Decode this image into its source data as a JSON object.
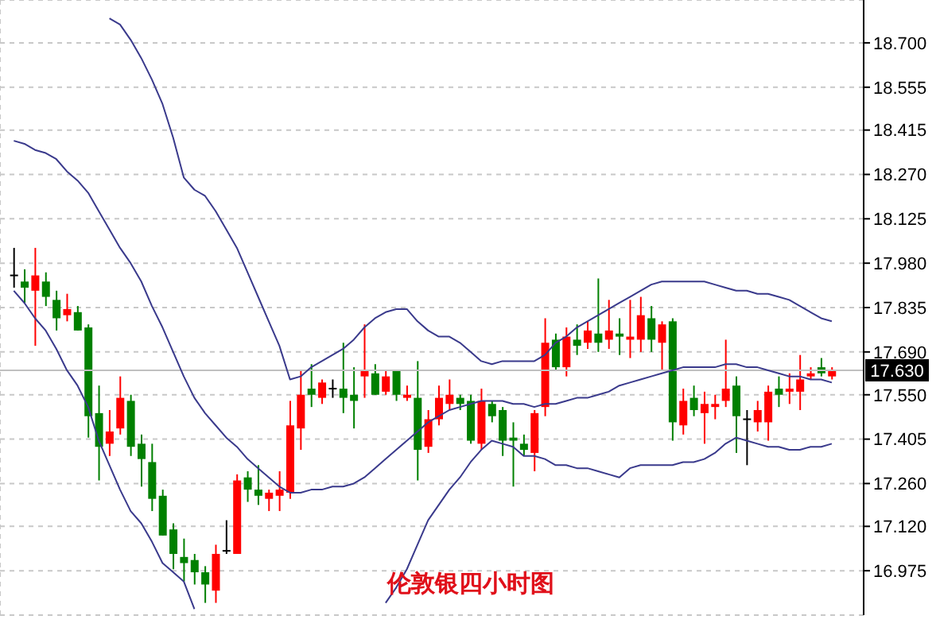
{
  "chart_data": {
    "type": "candlestick",
    "title": "伦敦银四小时图",
    "categories": [
      null,
      null,
      null,
      null,
      null,
      null,
      null,
      null,
      null,
      null,
      null,
      null,
      null,
      null,
      null,
      null,
      null,
      null,
      null,
      null,
      null,
      null,
      null,
      null,
      null,
      null,
      null,
      null,
      null,
      null,
      null,
      null,
      null,
      null,
      null,
      null,
      null,
      null,
      null,
      null,
      null,
      null,
      null,
      null,
      null,
      null,
      null,
      null,
      null,
      null,
      null,
      null,
      null,
      null,
      null,
      null,
      null,
      null,
      null,
      null,
      null,
      null,
      null,
      null,
      null,
      null,
      null,
      null,
      null,
      null,
      null,
      null,
      null,
      null,
      null,
      null,
      null,
      null
    ],
    "ohlc": [
      [
        17.94,
        18.03,
        17.9,
        17.94
      ],
      [
        17.92,
        17.96,
        17.85,
        17.9
      ],
      [
        17.89,
        18.03,
        17.71,
        17.94
      ],
      [
        17.92,
        17.95,
        17.84,
        17.87
      ],
      [
        17.86,
        17.89,
        17.76,
        17.8
      ],
      [
        17.81,
        17.88,
        17.79,
        17.83
      ],
      [
        17.82,
        17.84,
        17.76,
        17.76
      ],
      [
        17.77,
        17.78,
        17.41,
        17.48
      ],
      [
        17.49,
        17.58,
        17.27,
        17.38
      ],
      [
        17.39,
        17.5,
        17.35,
        17.43
      ],
      [
        17.44,
        17.61,
        17.42,
        17.54
      ],
      [
        17.53,
        17.55,
        17.35,
        17.38
      ],
      [
        17.39,
        17.42,
        17.25,
        17.34
      ],
      [
        17.33,
        17.39,
        17.17,
        17.21
      ],
      [
        17.22,
        17.24,
        17.09,
        17.09
      ],
      [
        17.11,
        17.13,
        16.98,
        17.03
      ],
      [
        17.02,
        17.08,
        16.94,
        17.0
      ],
      [
        17.01,
        17.03,
        16.93,
        16.97
      ],
      [
        16.97,
        16.99,
        16.87,
        16.93
      ],
      [
        16.91,
        17.06,
        16.87,
        17.03
      ],
      [
        17.04,
        17.14,
        17.03,
        17.04
      ],
      [
        17.03,
        17.29,
        17.03,
        17.27
      ],
      [
        17.28,
        17.3,
        17.2,
        17.24
      ],
      [
        17.24,
        17.32,
        17.19,
        17.22
      ],
      [
        17.21,
        17.24,
        17.17,
        17.23
      ],
      [
        17.22,
        17.3,
        17.17,
        17.24
      ],
      [
        17.23,
        17.53,
        17.21,
        17.45
      ],
      [
        17.44,
        17.63,
        17.37,
        17.55
      ],
      [
        17.57,
        17.65,
        17.51,
        17.55
      ],
      [
        17.54,
        17.6,
        17.52,
        17.59
      ],
      [
        17.57,
        17.6,
        17.54,
        17.57
      ],
      [
        17.57,
        17.72,
        17.49,
        17.54
      ],
      [
        17.55,
        17.64,
        17.44,
        17.53
      ],
      [
        17.61,
        17.78,
        17.54,
        17.63
      ],
      [
        17.62,
        17.65,
        17.55,
        17.55
      ],
      [
        17.56,
        17.63,
        17.55,
        17.61
      ],
      [
        17.63,
        17.63,
        17.53,
        17.55
      ],
      [
        17.54,
        17.58,
        17.53,
        17.55
      ],
      [
        17.54,
        17.66,
        17.27,
        17.37
      ],
      [
        17.38,
        17.5,
        17.36,
        17.47
      ],
      [
        17.47,
        17.58,
        17.45,
        17.54
      ],
      [
        17.52,
        17.6,
        17.5,
        17.55
      ],
      [
        17.54,
        17.55,
        17.5,
        17.52
      ],
      [
        17.53,
        17.55,
        17.39,
        17.4
      ],
      [
        17.39,
        17.57,
        17.37,
        17.53
      ],
      [
        17.52,
        17.53,
        17.46,
        17.48
      ],
      [
        17.5,
        17.51,
        17.35,
        17.4
      ],
      [
        17.41,
        17.46,
        17.25,
        17.4
      ],
      [
        17.39,
        17.42,
        17.35,
        17.37
      ],
      [
        17.36,
        17.5,
        17.3,
        17.49
      ],
      [
        17.51,
        17.8,
        17.48,
        17.72
      ],
      [
        17.73,
        17.75,
        17.63,
        17.64
      ],
      [
        17.64,
        17.77,
        17.61,
        17.74
      ],
      [
        17.73,
        17.78,
        17.68,
        17.71
      ],
      [
        17.72,
        17.79,
        17.7,
        17.76
      ],
      [
        17.75,
        17.93,
        17.69,
        17.72
      ],
      [
        17.73,
        17.86,
        17.7,
        17.76
      ],
      [
        17.75,
        17.8,
        17.68,
        17.74
      ],
      [
        17.73,
        17.86,
        17.67,
        17.74
      ],
      [
        17.73,
        17.87,
        17.69,
        17.81
      ],
      [
        17.8,
        17.84,
        17.69,
        17.73
      ],
      [
        17.72,
        17.79,
        17.63,
        17.78
      ],
      [
        17.79,
        17.8,
        17.4,
        17.46
      ],
      [
        17.45,
        17.57,
        17.42,
        17.53
      ],
      [
        17.54,
        17.58,
        17.48,
        17.5
      ],
      [
        17.49,
        17.56,
        17.39,
        17.52
      ],
      [
        17.51,
        17.55,
        17.47,
        17.52
      ],
      [
        17.53,
        17.73,
        17.51,
        17.57
      ],
      [
        17.58,
        17.61,
        17.36,
        17.48
      ],
      [
        17.47,
        17.5,
        17.32,
        17.47
      ],
      [
        17.46,
        17.53,
        17.43,
        17.5
      ],
      [
        17.46,
        17.58,
        17.4,
        17.56
      ],
      [
        17.57,
        17.61,
        17.51,
        17.55
      ],
      [
        17.56,
        17.62,
        17.52,
        17.57
      ],
      [
        17.56,
        17.68,
        17.5,
        17.6
      ],
      [
        17.61,
        17.64,
        17.6,
        17.62
      ],
      [
        17.64,
        17.67,
        17.61,
        17.62
      ],
      [
        17.61,
        17.64,
        17.6,
        17.63
      ]
    ],
    "colors": [
      "#000000",
      "#008000",
      "#ff0000",
      "#008000",
      "#008000",
      "#ff0000",
      "#008000",
      "#008000",
      "#008000",
      "#ff0000",
      "#ff0000",
      "#008000",
      "#008000",
      "#008000",
      "#008000",
      "#008000",
      "#008000",
      "#008000",
      "#008000",
      "#ff0000",
      "#000000",
      "#ff0000",
      "#008000",
      "#008000",
      "#ff0000",
      "#ff0000",
      "#ff0000",
      "#ff0000",
      "#008000",
      "#ff0000",
      "#000000",
      "#008000",
      "#008000",
      "#ff0000",
      "#008000",
      "#ff0000",
      "#008000",
      "#ff0000",
      "#008000",
      "#ff0000",
      "#ff0000",
      "#ff0000",
      "#008000",
      "#008000",
      "#ff0000",
      "#008000",
      "#008000",
      "#008000",
      "#008000",
      "#ff0000",
      "#ff0000",
      "#008000",
      "#ff0000",
      "#008000",
      "#ff0000",
      "#008000",
      "#ff0000",
      "#008000",
      "#ff0000",
      "#ff0000",
      "#008000",
      "#ff0000",
      "#008000",
      "#ff0000",
      "#008000",
      "#ff0000",
      "#ff0000",
      "#ff0000",
      "#008000",
      "#000000",
      "#ff0000",
      "#ff0000",
      "#008000",
      "#ff0000",
      "#ff0000",
      "#ff0000",
      "#008000",
      "#ff0000"
    ],
    "series": [
      {
        "type": "line",
        "color": "#3a3a8c",
        "values": [
          null,
          null,
          null,
          null,
          null,
          null,
          null,
          null,
          null,
          18.78,
          18.76,
          18.71,
          18.65,
          18.58,
          18.5,
          18.39,
          18.26,
          18.22,
          18.2,
          18.15,
          18.09,
          18.03,
          17.95,
          17.87,
          17.79,
          17.71,
          17.6,
          17.61,
          17.64,
          17.66,
          17.68,
          17.7,
          17.73,
          17.77,
          17.8,
          17.82,
          17.83,
          17.83,
          17.79,
          17.76,
          17.74,
          17.74,
          17.72,
          17.69,
          17.66,
          17.65,
          17.66,
          17.66,
          17.66,
          17.66,
          17.68,
          17.72,
          17.74,
          17.77,
          17.79,
          17.81,
          17.83,
          17.85,
          17.87,
          17.89,
          17.91,
          17.92,
          17.92,
          17.92,
          17.92,
          17.92,
          17.91,
          17.9,
          17.89,
          17.89,
          17.88,
          17.88,
          17.87,
          17.86,
          17.84,
          17.82,
          17.8,
          17.79
        ]
      },
      {
        "type": "line",
        "color": "#3a3a8c",
        "values": [
          18.38,
          18.37,
          18.35,
          18.34,
          18.32,
          18.28,
          18.25,
          18.21,
          18.15,
          18.09,
          18.03,
          17.98,
          17.92,
          17.84,
          17.77,
          17.69,
          17.61,
          17.54,
          17.49,
          17.45,
          17.41,
          17.38,
          17.34,
          17.31,
          17.28,
          17.25,
          17.23,
          17.23,
          17.24,
          17.24,
          17.25,
          17.25,
          17.26,
          17.28,
          17.31,
          17.34,
          17.37,
          17.4,
          17.43,
          17.46,
          17.48,
          17.5,
          17.51,
          17.52,
          17.53,
          17.53,
          17.53,
          17.52,
          17.52,
          17.51,
          17.52,
          17.52,
          17.53,
          17.54,
          17.54,
          17.55,
          17.56,
          17.58,
          17.59,
          17.6,
          17.61,
          17.62,
          17.63,
          17.64,
          17.64,
          17.64,
          17.64,
          17.65,
          17.65,
          17.64,
          17.64,
          17.63,
          17.62,
          17.61,
          17.61,
          17.6,
          17.6,
          17.59
        ]
      },
      {
        "type": "line",
        "color": "#3a3a8c",
        "values": [
          17.89,
          17.85,
          17.8,
          17.76,
          17.7,
          17.63,
          17.58,
          17.51,
          17.4,
          17.32,
          17.24,
          17.17,
          17.13,
          17.07,
          17.0,
          16.97,
          16.94,
          16.85,
          null,
          null,
          null,
          null,
          null,
          null,
          null,
          null,
          null,
          null,
          null,
          null,
          null,
          null,
          null,
          null,
          null,
          16.87,
          16.92,
          16.98,
          17.06,
          17.14,
          17.19,
          17.24,
          17.28,
          17.33,
          17.37,
          17.4,
          17.39,
          17.38,
          17.35,
          17.35,
          17.34,
          17.32,
          17.32,
          17.31,
          17.31,
          17.3,
          17.29,
          17.28,
          17.31,
          17.32,
          17.32,
          17.32,
          17.32,
          17.33,
          17.33,
          17.34,
          17.36,
          17.39,
          17.41,
          17.4,
          17.39,
          17.38,
          17.38,
          17.37,
          17.37,
          17.38,
          17.38,
          17.39
        ]
      }
    ],
    "ylim": [
      16.83,
      18.84
    ],
    "yticks": [
      {
        "value": 16.975,
        "label": "16.975"
      },
      {
        "value": 17.12,
        "label": "17.120"
      },
      {
        "value": 17.26,
        "label": "17.260"
      },
      {
        "value": 17.405,
        "label": "17.405"
      },
      {
        "value": 17.55,
        "label": "17.550"
      },
      {
        "value": 17.69,
        "label": "17.690"
      },
      {
        "value": 17.835,
        "label": "17.835"
      },
      {
        "value": 17.98,
        "label": "17.980"
      },
      {
        "value": 18.125,
        "label": "18.125"
      },
      {
        "value": 18.27,
        "label": "18.270"
      },
      {
        "value": 18.415,
        "label": "18.415"
      },
      {
        "value": 18.555,
        "label": "18.555"
      },
      {
        "value": 18.7,
        "label": "18.700"
      }
    ],
    "grid": true,
    "tick_labels": "y",
    "ref_lines": [
      {
        "axis": "y",
        "value": 17.63,
        "label": "17.630",
        "color": "#c0c0c0"
      }
    ]
  }
}
